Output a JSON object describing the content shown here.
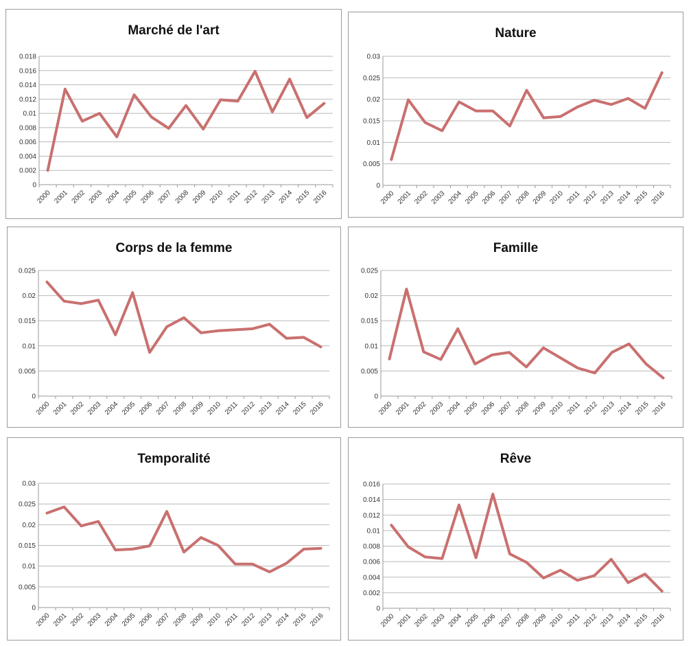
{
  "colors": {
    "line": "#c9706f",
    "grid": "#b9b9b9",
    "axis": "#9a9a9a"
  },
  "chart_data": [
    {
      "type": "line",
      "title": "Marché de l'art",
      "x": [
        "2000",
        "2001",
        "2002",
        "2003",
        "2004",
        "2005",
        "2006",
        "2007",
        "2008",
        "2009",
        "2010",
        "2011",
        "2012",
        "2013",
        "2014",
        "2015",
        "2016"
      ],
      "values": [
        0.002,
        0.0134,
        0.0089,
        0.01,
        0.0067,
        0.0126,
        0.0095,
        0.0079,
        0.0111,
        0.0078,
        0.0119,
        0.0117,
        0.0159,
        0.0102,
        0.0148,
        0.0094,
        0.0114
      ],
      "ylim": [
        0,
        0.018
      ],
      "yticks": [
        "0",
        "0.002",
        "0.004",
        "0.006",
        "0.008",
        "0.01",
        "0.012",
        "0.014",
        "0.016",
        "0.018"
      ],
      "grid": true
    },
    {
      "type": "line",
      "title": "Nature",
      "x": [
        "2000",
        "2001",
        "2002",
        "2003",
        "2004",
        "2005",
        "2006",
        "2007",
        "2008",
        "2009",
        "2010",
        "2011",
        "2012",
        "2013",
        "2014",
        "2015",
        "2016"
      ],
      "values": [
        0.006,
        0.0199,
        0.0146,
        0.0127,
        0.0194,
        0.0173,
        0.0173,
        0.0138,
        0.0221,
        0.0157,
        0.016,
        0.0182,
        0.0198,
        0.0188,
        0.0202,
        0.0179,
        0.0262
      ],
      "ylim": [
        0,
        0.03
      ],
      "yticks": [
        "0",
        "0.005",
        "0.01",
        "0.015",
        "0.02",
        "0.025",
        "0.03"
      ],
      "grid": true
    },
    {
      "type": "line",
      "title": "Corps de la femme",
      "x": [
        "2000",
        "2001",
        "2002",
        "2003",
        "2004",
        "2005",
        "2006",
        "2007",
        "2008",
        "2009",
        "2010",
        "2011",
        "2012",
        "2013",
        "2014",
        "2015",
        "2016"
      ],
      "values": [
        0.0227,
        0.0189,
        0.0184,
        0.0191,
        0.0122,
        0.0206,
        0.0087,
        0.0138,
        0.0156,
        0.0126,
        0.013,
        0.0132,
        0.0134,
        0.0143,
        0.0115,
        0.0117,
        0.0098
      ],
      "ylim": [
        0,
        0.025
      ],
      "yticks": [
        "0",
        "0.005",
        "0.01",
        "0.015",
        "0.02",
        "0.025"
      ],
      "grid": true
    },
    {
      "type": "line",
      "title": "Famille",
      "x": [
        "2000",
        "2001",
        "2002",
        "2003",
        "2004",
        "2005",
        "2006",
        "2007",
        "2008",
        "2009",
        "2010",
        "2011",
        "2012",
        "2013",
        "2014",
        "2015",
        "2016"
      ],
      "values": [
        0.0074,
        0.0213,
        0.0088,
        0.0073,
        0.0134,
        0.0064,
        0.0082,
        0.0087,
        0.0058,
        0.0096,
        0.0076,
        0.0056,
        0.0046,
        0.0087,
        0.0104,
        0.0064,
        0.0036
      ],
      "ylim": [
        0,
        0.025
      ],
      "yticks": [
        "0",
        "0.005",
        "0.01",
        "0.015",
        "0.02",
        "0.025"
      ],
      "grid": true
    },
    {
      "type": "line",
      "title": "Temporalité",
      "x": [
        "2000",
        "2001",
        "2002",
        "2003",
        "2004",
        "2005",
        "2006",
        "2007",
        "2008",
        "2009",
        "2010",
        "2011",
        "2012",
        "2013",
        "2014",
        "2015",
        "2016"
      ],
      "values": [
        0.0228,
        0.0243,
        0.0197,
        0.0208,
        0.0139,
        0.0141,
        0.0149,
        0.0232,
        0.0134,
        0.0169,
        0.015,
        0.0105,
        0.0105,
        0.0086,
        0.0107,
        0.0141,
        0.0143
      ],
      "ylim": [
        0,
        0.03
      ],
      "yticks": [
        "0",
        "0.005",
        "0.01",
        "0.015",
        "0.02",
        "0.025",
        "0.03"
      ],
      "grid": true
    },
    {
      "type": "line",
      "title": "Rêve",
      "x": [
        "2000",
        "2001",
        "2002",
        "2003",
        "2004",
        "2005",
        "2006",
        "2007",
        "2008",
        "2009",
        "2010",
        "2011",
        "2012",
        "2013",
        "2014",
        "2015",
        "2016"
      ],
      "values": [
        0.0107,
        0.0079,
        0.0066,
        0.0064,
        0.0133,
        0.0065,
        0.0147,
        0.007,
        0.0059,
        0.0039,
        0.0049,
        0.0036,
        0.0042,
        0.0063,
        0.0033,
        0.0044,
        0.0022
      ],
      "ylim": [
        0,
        0.016
      ],
      "yticks": [
        "0",
        "0.002",
        "0.004",
        "0.006",
        "0.008",
        "0.01",
        "0.012",
        "0.014",
        "0.016"
      ],
      "grid": true
    }
  ]
}
